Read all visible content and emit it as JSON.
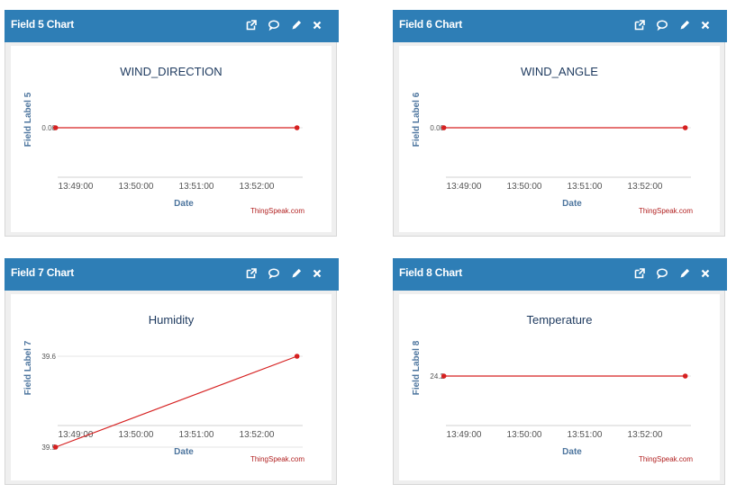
{
  "widgets": [
    {
      "header": "Field 5 Chart",
      "icons": [
        "external-link-icon",
        "comment-icon",
        "pencil-icon",
        "close-icon"
      ],
      "chart_data": {
        "type": "line",
        "title": "WIND_DIRECTION",
        "xlabel": "Date",
        "ylabel": "Field Label 5",
        "x_ticks": [
          "13:49:00",
          "13:50:00",
          "13:51:00",
          "13:52:00"
        ],
        "y_ticks": [
          "0.00"
        ],
        "series": [
          {
            "color": "#d62020",
            "x": [
              "13:48:40",
              "13:52:40"
            ],
            "values": [
              0.0,
              0.0
            ]
          }
        ],
        "credit": "ThingSpeak.com"
      }
    },
    {
      "header": "Field 6 Chart",
      "icons": [
        "external-link-icon",
        "comment-icon",
        "pencil-icon",
        "close-icon"
      ],
      "chart_data": {
        "type": "line",
        "title": "WIND_ANGLE",
        "xlabel": "Date",
        "ylabel": "Field Label 6",
        "x_ticks": [
          "13:49:00",
          "13:50:00",
          "13:51:00",
          "13:52:00"
        ],
        "y_ticks": [
          "0.00"
        ],
        "series": [
          {
            "color": "#d62020",
            "x": [
              "13:48:40",
              "13:52:40"
            ],
            "values": [
              0.0,
              0.0
            ]
          }
        ],
        "credit": "ThingSpeak.com"
      }
    },
    {
      "header": "Field 7 Chart",
      "icons": [
        "external-link-icon",
        "comment-icon",
        "pencil-icon",
        "close-icon"
      ],
      "chart_data": {
        "type": "line",
        "title": "Humidity",
        "xlabel": "Date",
        "ylabel": "Field Label 7",
        "x_ticks": [
          "13:49:00",
          "13:50:00",
          "13:51:00",
          "13:52:00"
        ],
        "y_ticks": [
          "39.6",
          "39.5"
        ],
        "ylim": [
          39.5,
          39.6
        ],
        "series": [
          {
            "color": "#d62020",
            "x": [
              "13:48:40",
              "13:52:40"
            ],
            "values": [
              39.5,
              39.6
            ]
          }
        ],
        "credit": "ThingSpeak.com"
      }
    },
    {
      "header": "Field 8 Chart",
      "icons": [
        "external-link-icon",
        "comment-icon",
        "pencil-icon",
        "close-icon"
      ],
      "chart_data": {
        "type": "line",
        "title": "Temperature",
        "xlabel": "Date",
        "ylabel": "Field Label 8",
        "x_ticks": [
          "13:49:00",
          "13:50:00",
          "13:51:00",
          "13:52:00"
        ],
        "y_ticks": [
          "24.2"
        ],
        "series": [
          {
            "color": "#d62020",
            "x": [
              "13:48:40",
              "13:52:40"
            ],
            "values": [
              24.2,
              24.2
            ]
          }
        ],
        "credit": "ThingSpeak.com"
      }
    }
  ],
  "colors": {
    "header_bg": "#2e7eb6",
    "header_text": "#ffffff",
    "panel_bg": "#efefef",
    "series_line": "#d62020",
    "axis_title": "#4d759e",
    "credit": "#b22222"
  }
}
